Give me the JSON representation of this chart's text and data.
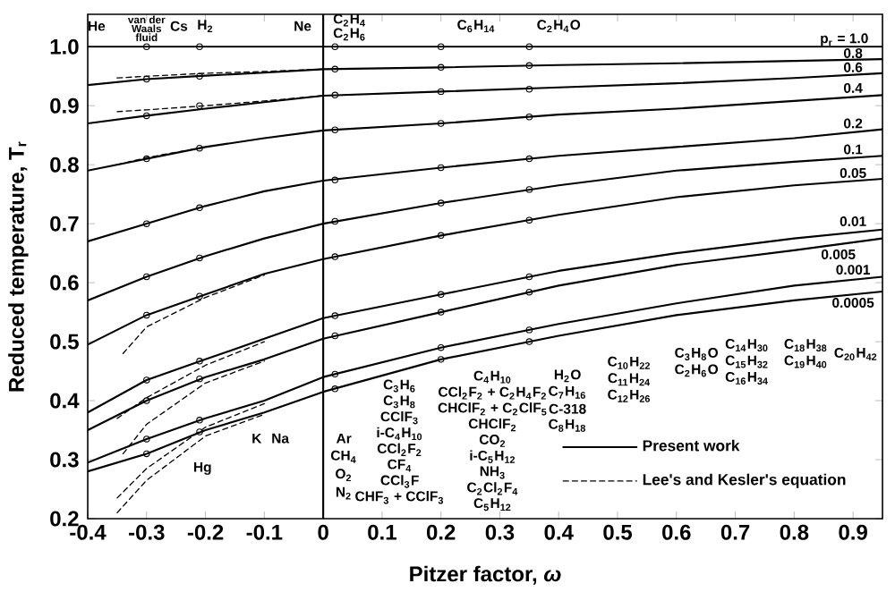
{
  "chart_data": {
    "type": "line",
    "xlabel": "Pitzer factor, *ω*",
    "ylabel": "Reduced temperature, T$_{r}$",
    "xlim": [
      -0.4,
      0.95
    ],
    "ylim": [
      0.2,
      1.055
    ],
    "xticks": [
      -0.4,
      -0.3,
      -0.2,
      -0.1,
      0,
      0.1,
      0.2,
      0.3,
      0.4,
      0.5,
      0.6,
      0.7,
      0.8,
      0.9
    ],
    "yticks": [
      0.2,
      0.3,
      0.4,
      0.5,
      0.6,
      0.7,
      0.8,
      0.9,
      {
        "value": 1.0,
        "label": "1.0"
      }
    ],
    "legend": "bottom right",
    "ref_lines": [
      {
        "axis": "x",
        "value": 0
      }
    ],
    "series": [
      {
        "name": "Present work",
        "type": "line",
        "line_style": "solid",
        "color": "#000000",
        "x": [
          -0.4,
          -0.3,
          -0.2,
          -0.1,
          0,
          0.2,
          0.4,
          0.6,
          0.8,
          0.95
        ],
        "values": [
          1.0,
          1.0,
          1.0,
          1.0,
          1.0,
          1.0,
          1.0,
          1.0,
          1.0,
          1.0
        ]
      },
      {
        "type": "line",
        "line_style": "solid",
        "color": "#000000",
        "x": [
          -0.4,
          -0.3,
          -0.2,
          -0.1,
          0,
          0.2,
          0.4,
          0.6,
          0.8,
          0.95
        ],
        "values": [
          0.935,
          0.945,
          0.951,
          0.956,
          0.962,
          0.965,
          0.969,
          0.972,
          0.976,
          0.979
        ]
      },
      {
        "type": "line",
        "line_style": "solid",
        "color": "#000000",
        "x": [
          -0.4,
          -0.3,
          -0.2,
          -0.1,
          0,
          0.2,
          0.4,
          0.6,
          0.8,
          0.95
        ],
        "values": [
          0.87,
          0.883,
          0.895,
          0.906,
          0.917,
          0.924,
          0.931,
          0.938,
          0.947,
          0.955
        ]
      },
      {
        "type": "line",
        "line_style": "solid",
        "color": "#000000",
        "x": [
          -0.4,
          -0.3,
          -0.2,
          -0.1,
          0,
          0.2,
          0.4,
          0.6,
          0.8,
          0.95
        ],
        "values": [
          0.79,
          0.81,
          0.83,
          0.845,
          0.858,
          0.87,
          0.885,
          0.895,
          0.908,
          0.918
        ]
      },
      {
        "type": "line",
        "line_style": "solid",
        "color": "#000000",
        "x": [
          -0.4,
          -0.3,
          -0.2,
          -0.1,
          0,
          0.2,
          0.4,
          0.6,
          0.8,
          0.95
        ],
        "values": [
          0.67,
          0.7,
          0.73,
          0.755,
          0.773,
          0.795,
          0.815,
          0.83,
          0.845,
          0.86
        ]
      },
      {
        "type": "line",
        "line_style": "solid",
        "color": "#000000",
        "x": [
          -0.4,
          -0.3,
          -0.2,
          -0.1,
          0,
          0.2,
          0.4,
          0.6,
          0.8,
          0.95
        ],
        "values": [
          0.57,
          0.61,
          0.645,
          0.675,
          0.7,
          0.735,
          0.765,
          0.79,
          0.805,
          0.815
        ]
      },
      {
        "type": "line",
        "line_style": "solid",
        "color": "#000000",
        "x": [
          -0.4,
          -0.3,
          -0.2,
          -0.1,
          0,
          0.2,
          0.4,
          0.6,
          0.8,
          0.95
        ],
        "values": [
          0.495,
          0.545,
          0.58,
          0.615,
          0.64,
          0.68,
          0.715,
          0.745,
          0.765,
          0.776
        ]
      },
      {
        "type": "line",
        "line_style": "solid",
        "color": "#000000",
        "x": [
          -0.4,
          -0.3,
          -0.2,
          -0.1,
          0,
          0.2,
          0.4,
          0.6,
          0.8,
          0.95
        ],
        "values": [
          0.38,
          0.435,
          0.47,
          0.505,
          0.54,
          0.58,
          0.62,
          0.65,
          0.675,
          0.69
        ]
      },
      {
        "type": "line",
        "line_style": "solid",
        "color": "#000000",
        "x": [
          -0.4,
          -0.3,
          -0.2,
          -0.1,
          0,
          0.2,
          0.4,
          0.6,
          0.8,
          0.95
        ],
        "values": [
          0.35,
          0.4,
          0.44,
          0.47,
          0.505,
          0.55,
          0.595,
          0.63,
          0.655,
          0.675
        ]
      },
      {
        "type": "line",
        "line_style": "solid",
        "color": "#000000",
        "x": [
          -0.4,
          -0.3,
          -0.2,
          -0.1,
          0,
          0.2,
          0.4,
          0.6,
          0.8,
          0.95
        ],
        "values": [
          0.295,
          0.335,
          0.37,
          0.4,
          0.44,
          0.49,
          0.53,
          0.565,
          0.595,
          0.61
        ]
      },
      {
        "type": "line",
        "line_style": "solid",
        "color": "#000000",
        "x": [
          -0.4,
          -0.3,
          -0.2,
          -0.1,
          0,
          0.2,
          0.4,
          0.6,
          0.8,
          0.95
        ],
        "values": [
          0.28,
          0.31,
          0.35,
          0.38,
          0.415,
          0.47,
          0.51,
          0.545,
          0.57,
          0.585
        ]
      },
      {
        "name": "Lee's and Kesler's equation",
        "type": "line",
        "line_style": "dashed",
        "color": "#000000",
        "x": [
          -0.35,
          -0.3,
          -0.2,
          -0.1,
          0
        ],
        "values": [
          0.947,
          0.95,
          0.955,
          0.958,
          0.962
        ]
      },
      {
        "type": "line",
        "line_style": "dashed",
        "color": "#000000",
        "x": [
          -0.35,
          -0.3,
          -0.2,
          -0.1,
          0
        ],
        "values": [
          0.89,
          0.893,
          0.9,
          0.908,
          0.917
        ]
      },
      {
        "type": "line",
        "line_style": "dashed",
        "color": "#000000",
        "x": [
          -0.35,
          -0.3,
          -0.2
        ],
        "values": [
          0.8,
          0.812,
          0.83
        ]
      },
      {
        "type": "line",
        "line_style": "dashed",
        "color": "#000000",
        "x": [
          -0.34,
          -0.3,
          -0.2,
          -0.1
        ],
        "values": [
          0.48,
          0.525,
          0.575,
          0.613
        ]
      },
      {
        "type": "line",
        "line_style": "dashed",
        "color": "#000000",
        "x": [
          -0.35,
          -0.3,
          -0.2,
          -0.1
        ],
        "values": [
          0.37,
          0.405,
          0.46,
          0.5
        ]
      },
      {
        "type": "line",
        "line_style": "dashed",
        "color": "#000000",
        "x": [
          -0.34,
          -0.3,
          -0.2,
          -0.1
        ],
        "values": [
          0.31,
          0.36,
          0.43,
          0.467
        ]
      },
      {
        "type": "line",
        "line_style": "dashed",
        "color": "#000000",
        "x": [
          -0.35,
          -0.3,
          -0.2,
          -0.1
        ],
        "values": [
          0.235,
          0.285,
          0.355,
          0.395
        ]
      },
      {
        "type": "line",
        "line_style": "dashed",
        "color": "#000000",
        "x": [
          -0.35,
          -0.3,
          -0.2,
          -0.1
        ],
        "values": [
          0.21,
          0.265,
          0.34,
          0.377
        ]
      },
      {
        "type": "scatter",
        "marker": "circle",
        "color": "#000000",
        "x": [
          -0.3,
          -0.3,
          -0.3,
          -0.3,
          -0.3,
          -0.3,
          -0.3,
          -0.3,
          -0.3,
          -0.3,
          -0.3
        ],
        "values": [
          1.0,
          0.945,
          0.883,
          0.81,
          0.7,
          0.61,
          0.545,
          0.435,
          0.4,
          0.335,
          0.31
        ]
      },
      {
        "type": "scatter",
        "marker": "circle",
        "color": "#000000",
        "x": [
          -0.21,
          0.02,
          0.2,
          0.35,
          -0.21,
          0.02,
          0.2,
          0.35,
          -0.21,
          0.02,
          0.2,
          0.35,
          -0.21,
          0.02,
          0.2,
          0.35,
          -0.21,
          0.02,
          0.2,
          0.35,
          -0.21,
          0.02,
          0.2,
          0.35,
          -0.21,
          0.02,
          0.2,
          0.35,
          -0.21,
          0.02,
          0.2,
          0.35,
          -0.21,
          0.02,
          0.2,
          0.35,
          -0.21,
          0.02,
          0.2,
          0.35,
          -0.21,
          0.02,
          0.2,
          0.35
        ],
        "values": [
          1.0,
          1.0,
          1.0,
          1.0,
          0.95,
          0.962,
          0.965,
          0.968,
          0.9,
          0.918,
          0.924,
          0.928,
          0.828,
          0.859,
          0.87,
          0.881,
          0.727,
          0.774,
          0.795,
          0.81,
          0.642,
          0.704,
          0.735,
          0.758,
          0.577,
          0.644,
          0.68,
          0.706,
          0.467,
          0.544,
          0.58,
          0.61,
          0.437,
          0.51,
          0.55,
          0.584,
          0.367,
          0.445,
          0.49,
          0.52,
          0.347,
          0.42,
          0.47,
          0.5
        ]
      }
    ],
    "annotations": [
      "p$_{r}$ = 1.0",
      "0.8",
      "0.6",
      "0.4",
      "0.2",
      "0.1",
      "0.05",
      "0.01",
      "0.005",
      "0.001",
      "0.0005",
      "He",
      "van der",
      "Waals",
      "fluid",
      "Cs",
      "H$_{2}$",
      "Ne",
      "C$_{2}$H$_{4}$",
      "C$_{2}$H$_{6}$",
      "C$_{6}$H$_{14}$",
      "C$_{2}$H$_{4}$O",
      "K",
      "Na",
      "Hg",
      "Ar",
      "CH$_{4}$",
      "O$_{2}$",
      "N$_{2}$",
      "C$_{3}$H$_{6}$",
      "C$_{3}$H$_{8}$",
      "CClF$_{3}$",
      "i-C$_{4}$H$_{10}$",
      "CCl$_{2}$F$_{2}$",
      "CF$_{4}$",
      "CCl$_{3}$F",
      "CHF$_{3}$ + CClF$_{3}$",
      "C$_{4}$H$_{10}$",
      "CCl$_{2}$F$_{2}$ + C$_{2}$H$_{4}$F$_{2}$",
      "CHClF$_{2}$ + C$_{2}$ClF$_{5}$",
      "CHClF$_{2}$",
      "CO$_{2}$",
      "i-C$_{5}$H$_{12}$",
      "NH$_{3}$",
      "C$_{2}$Cl$_{2}$F$_{4}$",
      "C$_{5}$H$_{12}$",
      "H$_{2}$O",
      "C$_{7}$H$_{16}$",
      "C-318",
      "C$_{8}$H$_{18}$",
      "C$_{10}$H$_{22}$",
      "C$_{11}$H$_{24}$",
      "C$_{12}$H$_{26}$",
      "C$_{3}$H$_{8}$O",
      "C$_{2}$H$_{6}$O",
      "C$_{14}$H$_{30}$",
      "C$_{15}$H$_{32}$",
      "C$_{16}$H$_{34}$",
      "C$_{18}$H$_{38}$",
      "C$_{19}$H$_{40}$",
      "C$_{20}$H$_{42}$"
    ]
  }
}
